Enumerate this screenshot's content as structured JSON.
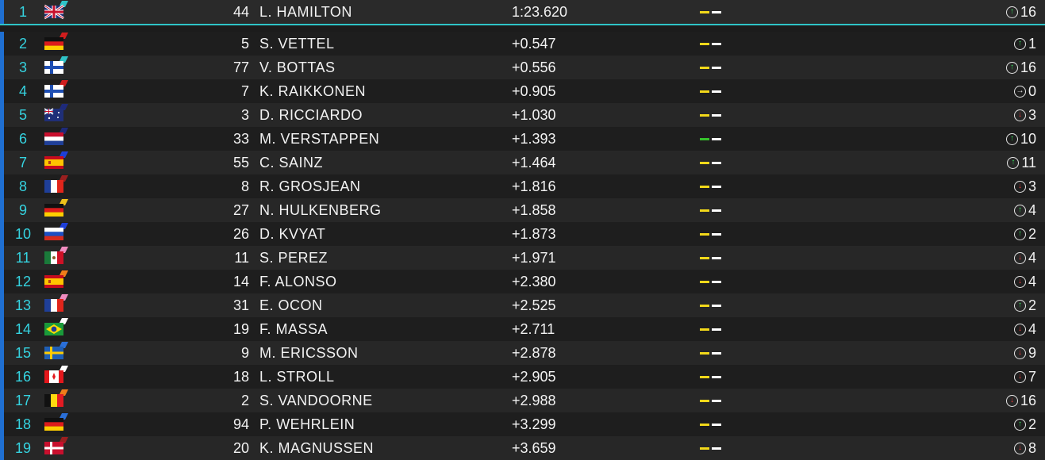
{
  "colors": {
    "position_text": "#35d3e0",
    "leader_underline": "#2fc4c8",
    "row_accent": "#1f6fd1",
    "sector_yellow": "#f2d81a",
    "sector_green": "#36c02c",
    "arrow_up": "#37d65a",
    "arrow_down": "#e23838"
  },
  "rows": [
    {
      "pos": "1",
      "num": "44",
      "name": "L. HAMILTON",
      "gap": "1:23.620",
      "sector": "yellow",
      "trend": "up",
      "delta": "16",
      "flag": "united-kingdom",
      "team_color": "#2fc4c8"
    },
    {
      "pos": "2",
      "num": "5",
      "name": "S. VETTEL",
      "gap": "+0.547",
      "sector": "yellow",
      "trend": "up",
      "delta": "1",
      "flag": "germany",
      "team_color": "#d01d1d"
    },
    {
      "pos": "3",
      "num": "77",
      "name": "V. BOTTAS",
      "gap": "+0.556",
      "sector": "yellow",
      "trend": "up",
      "delta": "16",
      "flag": "finland",
      "team_color": "#2fc4c8"
    },
    {
      "pos": "4",
      "num": "7",
      "name": "K. RAIKKONEN",
      "gap": "+0.905",
      "sector": "yellow",
      "trend": "same",
      "delta": "0",
      "flag": "finland",
      "team_color": "#d01d1d"
    },
    {
      "pos": "5",
      "num": "3",
      "name": "D. RICCIARDO",
      "gap": "+1.030",
      "sector": "yellow",
      "trend": "down",
      "delta": "3",
      "flag": "australia",
      "team_color": "#1e2a7a"
    },
    {
      "pos": "6",
      "num": "33",
      "name": "M. VERSTAPPEN",
      "gap": "+1.393",
      "sector": "green",
      "trend": "up",
      "delta": "10",
      "flag": "netherlands",
      "team_color": "#1e2a7a"
    },
    {
      "pos": "7",
      "num": "55",
      "name": "C. SAINZ",
      "gap": "+1.464",
      "sector": "yellow",
      "trend": "up",
      "delta": "11",
      "flag": "spain",
      "team_color": "#1d3fd8"
    },
    {
      "pos": "8",
      "num": "8",
      "name": "R. GROSJEAN",
      "gap": "+1.816",
      "sector": "yellow",
      "trend": "down",
      "delta": "3",
      "flag": "france",
      "team_color": "#9a1f1f"
    },
    {
      "pos": "9",
      "num": "27",
      "name": "N. HULKENBERG",
      "gap": "+1.858",
      "sector": "yellow",
      "trend": "up",
      "delta": "4",
      "flag": "germany",
      "team_color": "#f0c21a"
    },
    {
      "pos": "10",
      "num": "26",
      "name": "D. KVYAT",
      "gap": "+1.873",
      "sector": "yellow",
      "trend": "up",
      "delta": "2",
      "flag": "russia",
      "team_color": "#1d3fd8"
    },
    {
      "pos": "11",
      "num": "11",
      "name": "S. PEREZ",
      "gap": "+1.971",
      "sector": "yellow",
      "trend": "down",
      "delta": "4",
      "flag": "mexico",
      "team_color": "#f08cc0"
    },
    {
      "pos": "12",
      "num": "14",
      "name": "F. ALONSO",
      "gap": "+2.380",
      "sector": "yellow",
      "trend": "down",
      "delta": "4",
      "flag": "spain",
      "team_color": "#f07d1a"
    },
    {
      "pos": "13",
      "num": "31",
      "name": "E. OCON",
      "gap": "+2.525",
      "sector": "yellow",
      "trend": "up",
      "delta": "2",
      "flag": "france",
      "team_color": "#f08cc0"
    },
    {
      "pos": "14",
      "num": "19",
      "name": "F. MASSA",
      "gap": "+2.711",
      "sector": "yellow",
      "trend": "down",
      "delta": "4",
      "flag": "brazil",
      "team_color": "#ffffff"
    },
    {
      "pos": "15",
      "num": "9",
      "name": "M. ERICSSON",
      "gap": "+2.878",
      "sector": "yellow",
      "trend": "down",
      "delta": "9",
      "flag": "sweden",
      "team_color": "#2a6fd8"
    },
    {
      "pos": "16",
      "num": "18",
      "name": "L. STROLL",
      "gap": "+2.905",
      "sector": "yellow",
      "trend": "down",
      "delta": "7",
      "flag": "canada",
      "team_color": "#ffffff"
    },
    {
      "pos": "17",
      "num": "2",
      "name": "S. VANDOORNE",
      "gap": "+2.988",
      "sector": "yellow",
      "trend": "down",
      "delta": "16",
      "flag": "belgium",
      "team_color": "#f07d1a"
    },
    {
      "pos": "18",
      "num": "94",
      "name": "P. WEHRLEIN",
      "gap": "+3.299",
      "sector": "yellow",
      "trend": "up",
      "delta": "2",
      "flag": "germany",
      "team_color": "#2a6fd8"
    },
    {
      "pos": "19",
      "num": "20",
      "name": "K. MAGNUSSEN",
      "gap": "+3.659",
      "sector": "yellow",
      "trend": "down",
      "delta": "8",
      "flag": "denmark",
      "team_color": "#9a1f1f"
    }
  ]
}
